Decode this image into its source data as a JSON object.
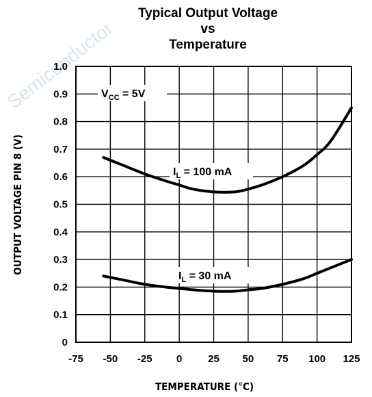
{
  "chart_data": {
    "type": "line",
    "title_lines": [
      "Typical Output Voltage",
      "vs",
      "Temperature"
    ],
    "xlabel": "TEMPERATURE (°C)",
    "ylabel": "OUTPUT VOLTAGE PIN 8 (V)",
    "xlim": [
      -75,
      125
    ],
    "ylim": [
      0,
      1.0
    ],
    "x_ticks": [
      -75,
      -50,
      -25,
      0,
      25,
      50,
      75,
      100,
      125
    ],
    "x_tick_labels": [
      "-75",
      "-50",
      "-25",
      "0",
      "25",
      "50",
      "75",
      "100",
      "125"
    ],
    "y_ticks": [
      0,
      0.1,
      0.2,
      0.3,
      0.4,
      0.5,
      0.6,
      0.7,
      0.8,
      0.9,
      1.0
    ],
    "y_tick_labels": [
      "0",
      "0.1",
      "0.2",
      "0.3",
      "0.4",
      "0.5",
      "0.6",
      "0.7",
      "0.8",
      "0.9",
      "1.0"
    ],
    "grid": true,
    "annotation": {
      "main": "V",
      "sub": "CC",
      "rest": " = 5V"
    },
    "series": [
      {
        "name_main": "I",
        "name_sub": "L",
        "name_rest": " = 100 mA",
        "x": [
          -55,
          -40,
          -25,
          -10,
          0,
          10,
          25,
          40,
          50,
          60,
          75,
          90,
          100,
          110,
          125
        ],
        "y": [
          0.67,
          0.64,
          0.61,
          0.585,
          0.57,
          0.555,
          0.545,
          0.545,
          0.555,
          0.57,
          0.6,
          0.64,
          0.68,
          0.73,
          0.85
        ]
      },
      {
        "name_main": "I",
        "name_sub": "L",
        "name_rest": " = 30 mA",
        "x": [
          -55,
          -40,
          -25,
          -10,
          0,
          10,
          25,
          40,
          50,
          60,
          75,
          90,
          100,
          110,
          125
        ],
        "y": [
          0.24,
          0.225,
          0.21,
          0.2,
          0.195,
          0.19,
          0.185,
          0.185,
          0.19,
          0.195,
          0.21,
          0.23,
          0.25,
          0.27,
          0.3
        ]
      }
    ],
    "line_color": "#000000",
    "grid_color": "#000000"
  },
  "watermark": {
    "text": "Semiconductor"
  }
}
